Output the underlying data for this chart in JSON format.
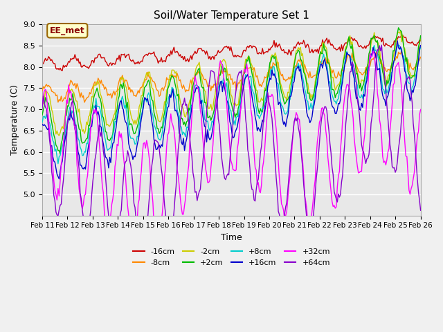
{
  "title": "Soil/Water Temperature Set 1",
  "xlabel": "Time",
  "ylabel": "Temperature (C)",
  "ylim": [
    4.5,
    9.0
  ],
  "yticks": [
    5.0,
    5.5,
    6.0,
    6.5,
    7.0,
    7.5,
    8.0,
    8.5,
    9.0
  ],
  "x_labels": [
    "Feb 11",
    "Feb 12",
    "Feb 13",
    "Feb 14",
    "Feb 15",
    "Feb 16",
    "Feb 17",
    "Feb 18",
    "Feb 19",
    "Feb 20",
    "Feb 21",
    "Feb 22",
    "Feb 23",
    "Feb 24",
    "Feb 25",
    "Feb 26"
  ],
  "n_days": 15,
  "points_per_day": 24,
  "annotation_text": "EE_met",
  "series": [
    {
      "label": "-16cm",
      "color": "#cc0000",
      "base": 8.05,
      "amplitude": 0.12,
      "trend": 0.04,
      "phase": 0.0,
      "freq": 1.0,
      "noise": 0.04
    },
    {
      "label": "-8cm",
      "color": "#ff8800",
      "base": 7.35,
      "amplitude": 0.2,
      "trend": 0.055,
      "phase": 0.3,
      "freq": 1.0,
      "noise": 0.05
    },
    {
      "label": "-2cm",
      "color": "#cccc00",
      "base": 6.85,
      "amplitude": 0.55,
      "trend": 0.1,
      "phase": 0.5,
      "freq": 1.0,
      "noise": 0.06
    },
    {
      "label": "+2cm",
      "color": "#00bb00",
      "base": 6.55,
      "amplitude": 0.6,
      "trend": 0.12,
      "phase": 0.6,
      "freq": 1.0,
      "noise": 0.06
    },
    {
      "label": "+8cm",
      "color": "#00cccc",
      "base": 6.3,
      "amplitude": 0.55,
      "trend": 0.12,
      "phase": 0.7,
      "freq": 1.0,
      "noise": 0.06
    },
    {
      "label": "+16cm",
      "color": "#0000cc",
      "base": 6.05,
      "amplitude": 0.65,
      "trend": 0.13,
      "phase": 0.8,
      "freq": 1.0,
      "noise": 0.07
    },
    {
      "label": "+32cm",
      "color": "#ff00ff",
      "base": 5.4,
      "amplitude": 1.3,
      "trend": 0.09,
      "phase": 1.0,
      "freq": 1.0,
      "noise": 0.08
    },
    {
      "label": "+64cm",
      "color": "#8800cc",
      "base": 5.0,
      "amplitude": 1.35,
      "trend": 0.12,
      "phase": 1.2,
      "freq": 0.9,
      "noise": 0.07
    }
  ],
  "bg_color": "#f0f0f0",
  "plot_bg": "#e8e8e8",
  "grid_color": "#ffffff",
  "annotation_bg": "#ffffcc",
  "annotation_border": "#996600"
}
